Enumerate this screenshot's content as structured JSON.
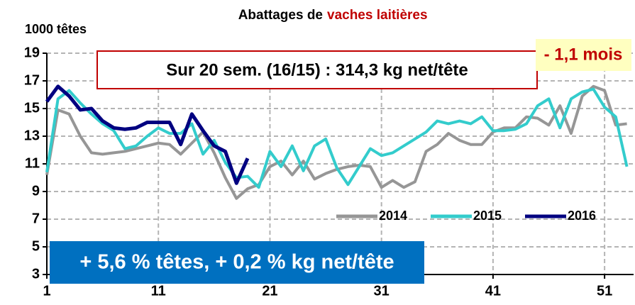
{
  "chart_data": {
    "type": "line",
    "title": "Abattages de",
    "title_highlight": "vaches laitières",
    "y_label": "1000 têtes",
    "annotations": [
      "Sur 20 sem. (16/15) : 314,3 kg net/tête",
      "- 1,1 mois",
      "+ 5,6 % têtes, + 0,2 % kg net/tête"
    ],
    "x": [
      1,
      2,
      3,
      4,
      5,
      6,
      7,
      8,
      9,
      10,
      11,
      12,
      13,
      14,
      15,
      16,
      17,
      18,
      19,
      20,
      21,
      22,
      23,
      24,
      25,
      26,
      27,
      28,
      29,
      30,
      31,
      32,
      33,
      34,
      35,
      36,
      37,
      38,
      39,
      40,
      41,
      42,
      43,
      44,
      45,
      46,
      47,
      48,
      49,
      50,
      51,
      52,
      53
    ],
    "series": [
      {
        "name": "2014",
        "color": "#969696",
        "values": [
          10.2,
          14.9,
          14.6,
          13.0,
          11.8,
          11.7,
          11.8,
          11.9,
          12.1,
          12.3,
          12.5,
          12.4,
          11.7,
          12.5,
          13.3,
          11.8,
          10.0,
          8.5,
          9.2,
          9.5,
          10.8,
          11.2,
          10.2,
          11.2,
          9.9,
          10.3,
          10.6,
          10.8,
          10.9,
          10.8,
          9.3,
          9.8,
          9.3,
          9.7,
          11.9,
          12.4,
          13.2,
          12.7,
          12.4,
          12.4,
          13.3,
          13.6,
          13.6,
          14.4,
          14.3,
          13.8,
          15.2,
          13.2,
          15.9,
          16.6,
          16.3,
          13.8,
          13.9
        ]
      },
      {
        "name": "2015",
        "color": "#33cccc",
        "values": [
          10.4,
          15.7,
          16.3,
          15.4,
          14.6,
          13.9,
          13.4,
          12.1,
          12.3,
          13.0,
          13.6,
          13.2,
          13.2,
          13.9,
          11.7,
          12.7,
          11.1,
          10.0,
          10.1,
          9.3,
          11.9,
          10.8,
          12.3,
          10.5,
          12.3,
          12.8,
          10.7,
          9.5,
          10.8,
          12.1,
          11.6,
          11.8,
          12.3,
          12.8,
          13.3,
          14.1,
          13.9,
          14.1,
          13.9,
          14.4,
          13.4,
          13.4,
          13.5,
          13.9,
          15.2,
          15.7,
          13.6,
          15.7,
          16.2,
          16.4,
          15.1,
          14.4,
          10.8
        ]
      },
      {
        "name": "2016",
        "color": "#000080",
        "values": [
          15.5,
          16.6,
          15.9,
          14.9,
          15.0,
          14.1,
          13.6,
          13.5,
          13.6,
          14.0,
          14.0,
          14.0,
          12.4,
          14.6,
          13.4,
          12.3,
          11.9,
          9.6,
          11.4,
          null,
          null,
          null,
          null,
          null,
          null,
          null,
          null,
          null,
          null,
          null,
          null,
          null,
          null,
          null,
          null,
          null,
          null,
          null,
          null,
          null,
          null,
          null,
          null,
          null,
          null,
          null,
          null,
          null,
          null,
          null,
          null,
          null,
          null
        ]
      }
    ],
    "xlim": [
      1,
      53.6
    ],
    "ylim": [
      3,
      19
    ],
    "xticks": [
      1,
      11,
      21,
      31,
      41,
      51
    ],
    "yticks": [
      3,
      5,
      7,
      9,
      11,
      13,
      15,
      17,
      19
    ],
    "grid": true,
    "legend": "lower right",
    "title_highlight_color": "#c00000"
  }
}
